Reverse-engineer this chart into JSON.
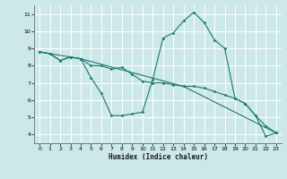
{
  "xlabel": "Humidex (Indice chaleur)",
  "bg_color": "#cce8e8",
  "grid_color": "#ffffff",
  "line_color": "#1a7a6e",
  "xlim": [
    -0.5,
    23.5
  ],
  "ylim": [
    3.5,
    11.5
  ],
  "xticks": [
    0,
    1,
    2,
    3,
    4,
    5,
    6,
    7,
    8,
    9,
    10,
    11,
    12,
    13,
    14,
    15,
    16,
    17,
    18,
    19,
    20,
    21,
    22,
    23
  ],
  "yticks": [
    4,
    5,
    6,
    7,
    8,
    9,
    10,
    11
  ],
  "series1_x": [
    0,
    1,
    2,
    3,
    4,
    5,
    6,
    7,
    8,
    9,
    10,
    11,
    12,
    13,
    14,
    15,
    16,
    17,
    18,
    19,
    20,
    21,
    22,
    23
  ],
  "series1_y": [
    8.8,
    8.7,
    8.3,
    8.5,
    8.4,
    7.3,
    6.4,
    5.1,
    5.1,
    5.2,
    5.3,
    7.2,
    9.6,
    9.9,
    10.6,
    11.1,
    10.5,
    9.5,
    9.0,
    6.1,
    5.8,
    5.1,
    3.9,
    4.1
  ],
  "series2_x": [
    0,
    1,
    2,
    3,
    4,
    5,
    6,
    7,
    8,
    9,
    10,
    11,
    12,
    13,
    14,
    15,
    16,
    17,
    18,
    19,
    20,
    21,
    22,
    23
  ],
  "series2_y": [
    8.8,
    8.7,
    8.3,
    8.5,
    8.4,
    8.0,
    8.0,
    7.8,
    7.9,
    7.5,
    7.1,
    7.0,
    7.0,
    6.9,
    6.8,
    6.8,
    6.7,
    6.5,
    6.3,
    6.1,
    5.8,
    5.1,
    4.5,
    4.1
  ],
  "series3_x": [
    0,
    4,
    14,
    23
  ],
  "series3_y": [
    8.8,
    8.4,
    6.8,
    4.1
  ]
}
